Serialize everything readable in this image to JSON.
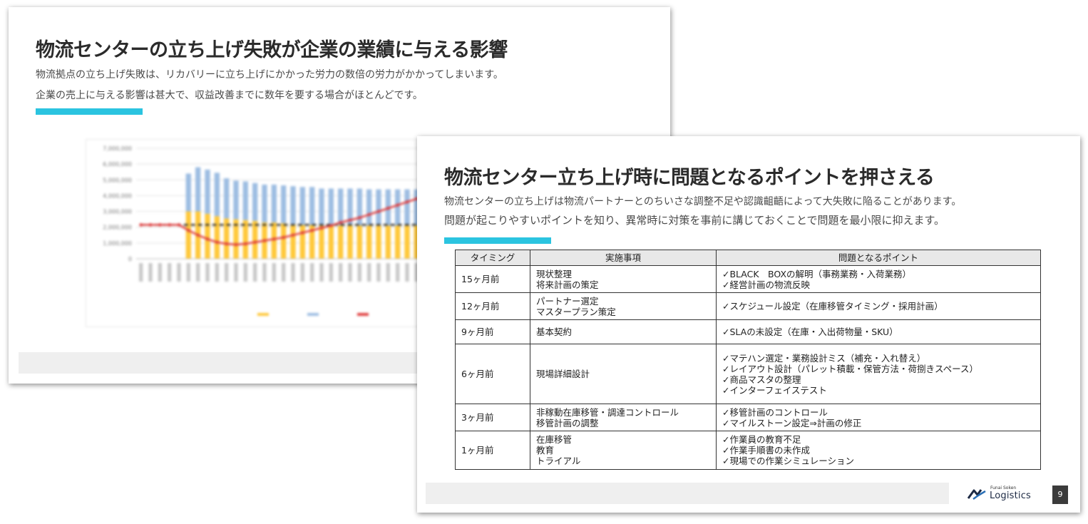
{
  "back_slide": {
    "title": "物流センターの立ち上げ失敗が企業の業績に与える影響",
    "subtitle_line1": "物流拠点の立ち上げ失敗は、リカバリーに立ち上げにかかった労力の数倍の労力がかかってしまいます。",
    "subtitle_line2": "企業の売上に与える影響は甚大で、収益改善までに数年を要する場合がほとんどです。",
    "chart_data": {
      "type": "bar",
      "stacked": true,
      "blurred": true,
      "title": "",
      "xlabel": "",
      "ylabel": "",
      "ylim": [
        0,
        7000000
      ],
      "yticks": [
        0,
        1000000,
        2000000,
        3000000,
        4000000,
        5000000,
        6000000,
        7000000
      ],
      "series": [
        {
          "name": "",
          "type": "bar",
          "color": "#ffc83a",
          "values": [
            0,
            0,
            0,
            0,
            0,
            3000000,
            3000000,
            2850000,
            2700000,
            2550000,
            2500000,
            2450000,
            2400000,
            2300000,
            2300000,
            2250000,
            2200000,
            2150000,
            2150000,
            2100000,
            2100000,
            2100000,
            2100000,
            2100000,
            2100000,
            2100000,
            2100000,
            2100000,
            2100000,
            2100000
          ]
        },
        {
          "name": "",
          "type": "bar",
          "color": "#9dbde2",
          "values": [
            0,
            0,
            0,
            0,
            0,
            2400000,
            2800000,
            2800000,
            2750000,
            2550000,
            2450000,
            2450000,
            2400000,
            2400000,
            2400000,
            2400000,
            2400000,
            2400000,
            2400000,
            2350000,
            2350000,
            2350000,
            2350000,
            2350000,
            2300000,
            2300000,
            2300000,
            2300000,
            2300000,
            2300000
          ]
        },
        {
          "name": "",
          "type": "line",
          "color": "#e04040",
          "values": [
            2150000,
            2150000,
            2150000,
            2150000,
            2150000,
            1800000,
            1500000,
            1250000,
            1050000,
            950000,
            900000,
            950000,
            1050000,
            1150000,
            1250000,
            1350000,
            1500000,
            1650000,
            1800000,
            1950000,
            2100000,
            2300000,
            2450000,
            2600000,
            2800000,
            3000000,
            3200000,
            3400000,
            3600000,
            3800000
          ]
        },
        {
          "name": "",
          "type": "line",
          "dashed": true,
          "color": "#333333",
          "values": [
            2150000,
            2150000,
            2150000,
            2150000,
            2150000,
            2150000,
            2150000,
            2150000,
            2150000,
            2150000,
            2150000,
            2150000,
            2150000,
            2150000,
            2150000,
            2150000,
            2150000,
            2150000,
            2150000,
            2150000,
            2150000,
            2150000,
            2150000,
            2150000,
            2150000,
            2150000,
            2150000,
            2150000,
            2150000,
            2150000
          ]
        }
      ]
    }
  },
  "front_slide": {
    "title": "物流センター立ち上げ時に問題となるポイントを押さえる",
    "subtitle_line1": "物流センターの立ち上げは物流パートナーとのちいさな調整不足や認識齟齬によって大失敗に陥ることがあります。",
    "subtitle_line2": "問題が起こりやすいポイントを知り、異常時に対策を事前に講じておくことで問題を最小限に抑えます。",
    "table": {
      "headers": [
        "タイミング",
        "実施事項",
        "問題となるポイント"
      ],
      "rows": [
        {
          "timing": "15ヶ月前",
          "tasks": [
            "現状整理",
            "将来計画の策定"
          ],
          "points": [
            "✓BLACK　BOXの解明（事務業務・入荷業務）",
            "✓経営計画の物流反映"
          ]
        },
        {
          "timing": "12ヶ月前",
          "tasks": [
            "パートナー選定",
            "マスタープラン策定"
          ],
          "points": [
            "✓スケジュール設定（在庫移管タイミング・採用計画）"
          ]
        },
        {
          "timing": "9ヶ月前",
          "tasks": [
            "基本契約"
          ],
          "points": [
            "✓SLAの未設定（在庫・入出荷物量・SKU）"
          ]
        },
        {
          "timing": "6ヶ月前",
          "tasks": [
            "現場詳細設計"
          ],
          "points": [
            "✓マテハン選定・業務設計ミス（補充・入れ替え）",
            "✓レイアウト設計（パレット積載・保管方法・荷捌きスペース）",
            "✓商品マスタの整理",
            "✓インターフェイステスト"
          ]
        },
        {
          "timing": "3ヶ月前",
          "tasks": [
            "非稼動在庫移管・調達コントロール",
            "移管計画の調整"
          ],
          "points": [
            "✓移管計画のコントロール",
            "✓マイルストーン設定⇒計画の修正"
          ]
        },
        {
          "timing": "1ヶ月前",
          "tasks": [
            "在庫移管",
            "教育",
            "トライアル"
          ],
          "points": [
            "✓作業員の教育不足",
            "✓作業手順書の未作成",
            "✓現場での作業シミュレーション"
          ]
        }
      ]
    },
    "logo": {
      "top": "Funai Soken",
      "main": "Logistics"
    },
    "page_number": "9"
  },
  "colors": {
    "accent": "#2bc4e0",
    "bar_yellow": "#ffc83a",
    "bar_blue": "#9dbde2",
    "line_red": "#e04040"
  }
}
